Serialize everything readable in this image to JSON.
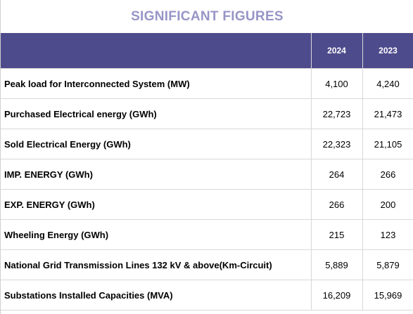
{
  "title": "SIGNIFICANT FIGURES",
  "columns": {
    "label": "",
    "y1": "2024",
    "y2": "2023"
  },
  "rows": [
    {
      "label": "Peak load for Interconnected  System (MW)",
      "y1": "4,100",
      "y2": "4,240"
    },
    {
      "label": "Purchased Electrical energy (GWh)",
      "y1": "22,723",
      "y2": "21,473"
    },
    {
      "label": "Sold Electrical Energy (GWh)",
      "y1": "22,323",
      "y2": "21,105"
    },
    {
      "label": "IMP. ENERGY (GWh)",
      "y1": "264",
      "y2": "266"
    },
    {
      "label": "EXP. ENERGY (GWh)",
      "y1": "266",
      "y2": "200"
    },
    {
      "label": "Wheeling Energy (GWh)",
      "y1": "215",
      "y2": "123"
    },
    {
      "label": "National Grid Transmission Lines 132 kV & above(Km-Circuit)",
      "y1": "5,889",
      "y2": "5,879"
    },
    {
      "label": "Substations Installed Capacities  (MVA)",
      "y1": "16,209",
      "y2": "15,969"
    }
  ],
  "colors": {
    "title": "#9795c6",
    "header_bg": "#4e4b8c",
    "header_text": "#ffffff",
    "grid": "#d8d8d8"
  }
}
